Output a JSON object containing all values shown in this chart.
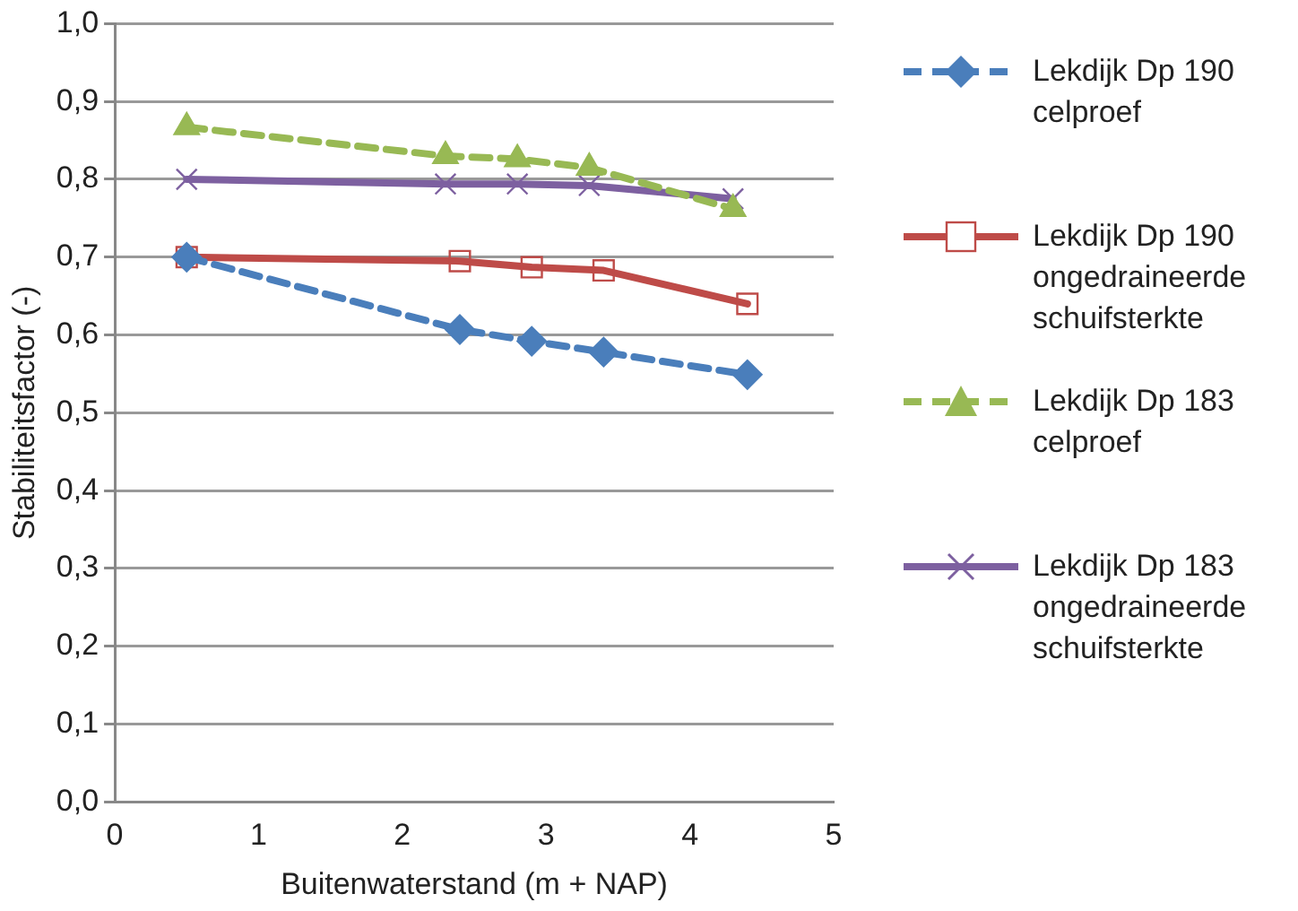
{
  "chart_data": {
    "type": "line",
    "xlabel": "Buitenwaterstand (m + NAP)",
    "ylabel": "Stabiliteitsfactor (-)",
    "xlim": [
      0,
      5
    ],
    "xticks": [
      0,
      1,
      2,
      3,
      4,
      5
    ],
    "ylim": [
      0,
      1
    ],
    "yticks": [
      {
        "value": 0,
        "label": "0,0"
      },
      {
        "value": 0.1,
        "label": "0,1"
      },
      {
        "value": 0.2,
        "label": "0,2"
      },
      {
        "value": 0.3,
        "label": "0,3"
      },
      {
        "value": 0.4,
        "label": "0,4"
      },
      {
        "value": 0.5,
        "label": "0,5"
      },
      {
        "value": 0.6,
        "label": "0,6"
      },
      {
        "value": 0.7,
        "label": "0,7"
      },
      {
        "value": 0.8,
        "label": "0,8"
      },
      {
        "value": 0.9,
        "label": "0,9"
      },
      {
        "value": 1,
        "label": "1,0"
      }
    ],
    "grid": "y",
    "legend": "right",
    "series": [
      {
        "name": "Lekdijk Dp 190 celproef",
        "color": "#4a7ebb",
        "marker": "diamond",
        "line_style": "dashed",
        "x": [
          0.5,
          2.4,
          2.9,
          3.4,
          4.4
        ],
        "values": [
          0.7,
          0.607,
          0.592,
          0.578,
          0.549
        ]
      },
      {
        "name": "Lekdijk Dp 190 ongedraineerde schuifsterkte",
        "color": "#be4b48",
        "marker": "square",
        "line_style": "solid",
        "x": [
          0.5,
          2.4,
          2.9,
          3.4,
          4.4
        ],
        "values": [
          0.7,
          0.695,
          0.687,
          0.683,
          0.64
        ]
      },
      {
        "name": "Lekdijk Dp 183 celproef",
        "color": "#98b954",
        "marker": "triangle",
        "line_style": "dashed",
        "x": [
          0.5,
          2.3,
          2.8,
          3.3,
          4.3
        ],
        "values": [
          0.867,
          0.83,
          0.826,
          0.815,
          0.762
        ]
      },
      {
        "name": "Lekdijk Dp 183 ongedraineerde schuifsterkte",
        "color": "#7d60a0",
        "marker": "cross",
        "line_style": "solid",
        "x": [
          0.5,
          2.3,
          2.8,
          3.3,
          4.3
        ],
        "values": [
          0.8,
          0.794,
          0.794,
          0.792,
          0.775
        ]
      }
    ]
  }
}
